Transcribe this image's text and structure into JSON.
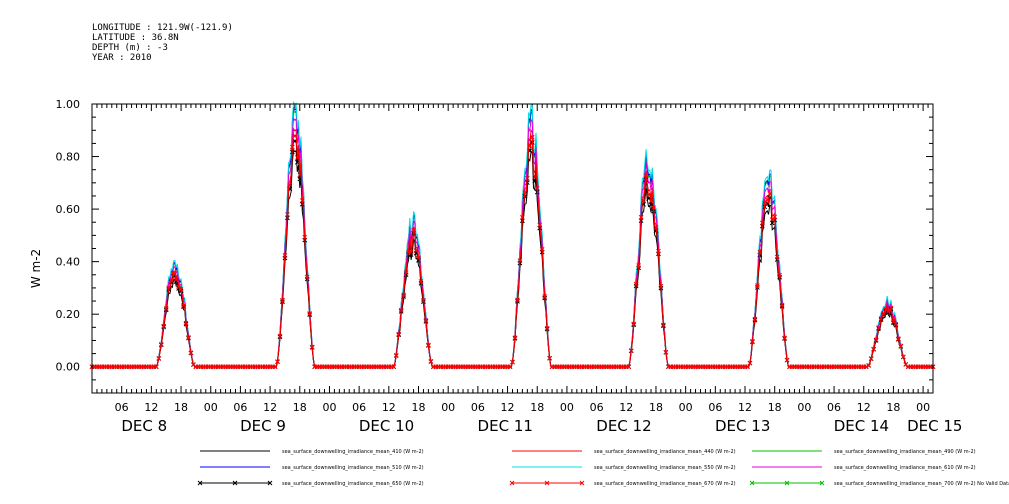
{
  "header": {
    "longitude": "LONGITUDE : 121.9W(-121.9)",
    "latitude": "LATITUDE : 36.8N",
    "depth": "DEPTH (m) : -3",
    "year": "YEAR : 2010"
  },
  "chart_data": {
    "type": "line",
    "ylabel": "W m-2",
    "ylim": [
      -0.1,
      1.0
    ],
    "yticks": [
      "0.00",
      "0.20",
      "0.40",
      "0.60",
      "0.80",
      "1.00"
    ],
    "ytick_values": [
      0.0,
      0.2,
      0.4,
      0.6,
      0.8,
      1.0
    ],
    "xlim_hours": [
      0,
      170
    ],
    "hour_ticks": [
      "06",
      "12",
      "18",
      "00",
      "06",
      "12",
      "18",
      "00",
      "06",
      "12",
      "18",
      "00",
      "06",
      "12",
      "18",
      "00",
      "06",
      "12",
      "18",
      "00",
      "06",
      "12",
      "18",
      "00",
      "06",
      "12",
      "18",
      "00"
    ],
    "days": [
      "DEC  8",
      "DEC  9",
      "DEC 10",
      "DEC 11",
      "DEC 12",
      "DEC 13",
      "DEC 14",
      "DEC 15"
    ],
    "day_peaks": [
      {
        "day": "DEC 8",
        "rise": 13.0,
        "set": 20.7,
        "peak": 0.4
      },
      {
        "day": "DEC 9",
        "rise": 13.3,
        "set": 21.0,
        "peak": 0.95
      },
      {
        "day": "DEC 10",
        "rise": 13.0,
        "set": 20.8,
        "peak": 0.55
      },
      {
        "day": "DEC 11",
        "rise": 12.8,
        "set": 20.8,
        "peak": 0.93
      },
      {
        "day": "DEC 12",
        "rise": 12.5,
        "set": 20.5,
        "peak": 0.8
      },
      {
        "day": "DEC 13",
        "rise": 12.8,
        "set": 20.8,
        "peak": 0.72
      },
      {
        "day": "DEC 14",
        "rise": 12.8,
        "set": 20.8,
        "peak": 0.25
      }
    ],
    "series": [
      {
        "name": "sea_surface_downwelling_irradiance_mean_410 (W m-2)",
        "color": "#000000",
        "scale": 0.82,
        "marker": "none"
      },
      {
        "name": "sea_surface_downwelling_irradiance_mean_440 (W m-2)",
        "color": "#ff0000",
        "scale": 0.9,
        "marker": "none"
      },
      {
        "name": "sea_surface_downwelling_irradiance_mean_490 (W m-2)",
        "color": "#00c000",
        "scale": 0.97,
        "marker": "none"
      },
      {
        "name": "sea_surface_downwelling_irradiance_mean_510 (W m-2)",
        "color": "#0000ff",
        "scale": 0.98,
        "marker": "none"
      },
      {
        "name": "sea_surface_downwelling_irradiance_mean_550 (W m-2)",
        "color": "#00e0e0",
        "scale": 1.0,
        "marker": "none"
      },
      {
        "name": "sea_surface_downwelling_irradiance_mean_610 (W m-2)",
        "color": "#e000e0",
        "scale": 0.94,
        "marker": "none"
      },
      {
        "name": "sea_surface_downwelling_irradiance_mean_650 (W m-2)",
        "color": "#000000",
        "scale": 0.86,
        "marker": "x"
      },
      {
        "name": "sea_surface_downwelling_irradiance_mean_670 (W m-2)",
        "color": "#ff0000",
        "scale": 0.88,
        "marker": "x"
      },
      {
        "name": "sea_surface_downwelling_irradiance_mean_700 (W m-2) No Valid Data",
        "color": "#00c000",
        "scale": 0,
        "marker": "x"
      }
    ]
  }
}
